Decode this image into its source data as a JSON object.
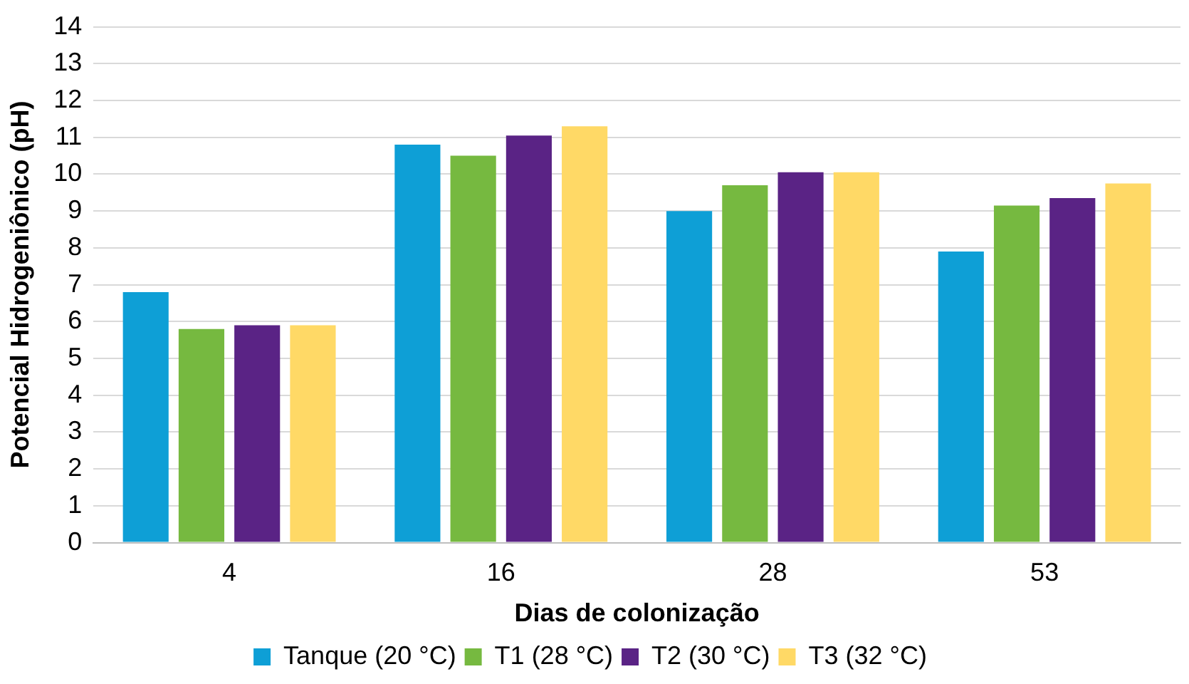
{
  "chart_data": {
    "type": "bar",
    "xlabel": "Dias de colonização",
    "ylabel": "Potencial Hidrogeniônico (pH)",
    "categories": [
      "4",
      "16",
      "28",
      "53"
    ],
    "series": [
      {
        "name": "Tanque (20 °C)",
        "color": "#0e9fd6",
        "values": [
          6.8,
          10.8,
          9.0,
          7.9
        ]
      },
      {
        "name": "T1 (28 °C)",
        "color": "#76b940",
        "values": [
          5.8,
          10.5,
          9.7,
          9.15
        ]
      },
      {
        "name": "T2 (30 °C)",
        "color": "#5a2385",
        "values": [
          5.9,
          11.05,
          10.05,
          9.35
        ]
      },
      {
        "name": "T3 (32 °C)",
        "color": "#ffd966",
        "values": [
          5.9,
          11.3,
          10.05,
          9.75
        ]
      }
    ],
    "ylim": [
      0,
      14
    ],
    "yticks": [
      0,
      1,
      2,
      3,
      4,
      5,
      6,
      7,
      8,
      9,
      10,
      11,
      12,
      13,
      14
    ],
    "grid": "y",
    "legend": "bottom"
  }
}
